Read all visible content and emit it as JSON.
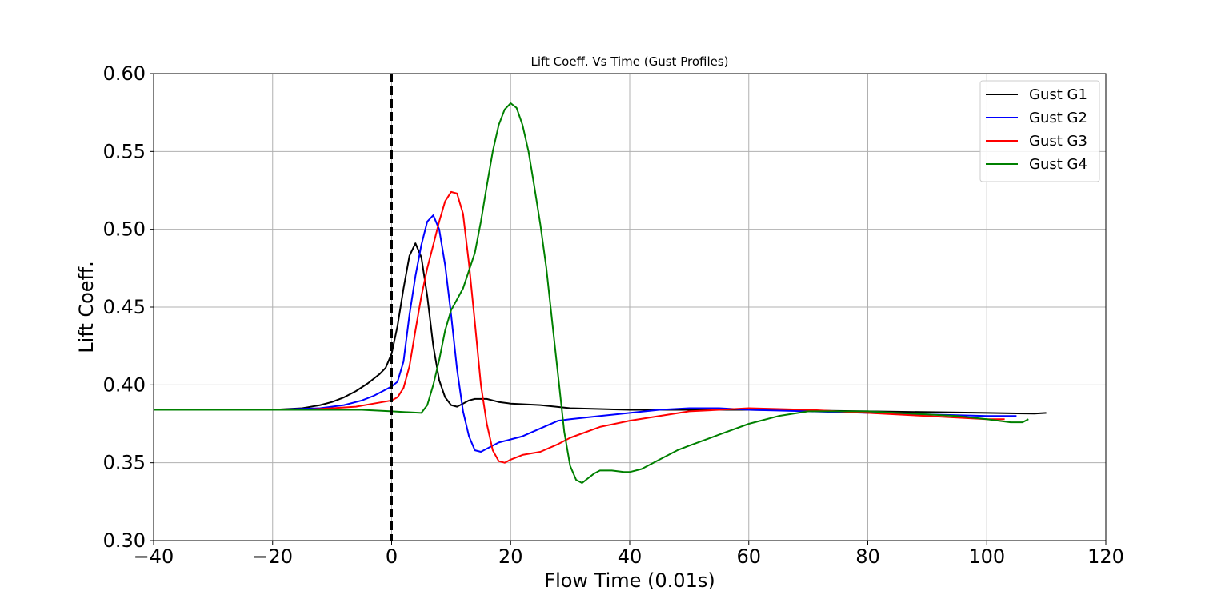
{
  "chart_data": {
    "type": "line",
    "title": "Lift Coeff. Vs Time (Gust Profiles)",
    "xlabel": "Flow Time (0.01s)",
    "ylabel": "Lift Coeff.",
    "xlim": [
      -40,
      120
    ],
    "ylim": [
      0.3,
      0.6
    ],
    "x_ticks": [
      -40,
      -20,
      0,
      20,
      40,
      60,
      80,
      100,
      120
    ],
    "x_tick_labels": [
      "−40",
      "−20",
      "0",
      "20",
      "40",
      "60",
      "80",
      "100",
      "120"
    ],
    "y_ticks": [
      0.3,
      0.35,
      0.4,
      0.45,
      0.5,
      0.55,
      0.6
    ],
    "y_tick_labels": [
      "0.30",
      "0.35",
      "0.40",
      "0.45",
      "0.50",
      "0.55",
      "0.60"
    ],
    "grid": true,
    "legend_position": "top-right",
    "reference_line": {
      "x": 0,
      "style": "dashed",
      "color": "#000000"
    },
    "series": [
      {
        "name": "Gust G1",
        "color": "#000000",
        "points": [
          [
            -40,
            0.384
          ],
          [
            -20,
            0.384
          ],
          [
            -15,
            0.385
          ],
          [
            -12,
            0.387
          ],
          [
            -10,
            0.389
          ],
          [
            -8,
            0.392
          ],
          [
            -6,
            0.396
          ],
          [
            -4,
            0.401
          ],
          [
            -2,
            0.407
          ],
          [
            -1,
            0.411
          ],
          [
            0,
            0.42
          ],
          [
            1,
            0.438
          ],
          [
            2,
            0.462
          ],
          [
            3,
            0.483
          ],
          [
            4,
            0.491
          ],
          [
            5,
            0.482
          ],
          [
            6,
            0.457
          ],
          [
            7,
            0.425
          ],
          [
            8,
            0.403
          ],
          [
            9,
            0.392
          ],
          [
            10,
            0.387
          ],
          [
            11,
            0.386
          ],
          [
            12,
            0.388
          ],
          [
            13,
            0.39
          ],
          [
            14,
            0.391
          ],
          [
            15,
            0.391
          ],
          [
            16,
            0.391
          ],
          [
            18,
            0.389
          ],
          [
            20,
            0.388
          ],
          [
            25,
            0.387
          ],
          [
            30,
            0.385
          ],
          [
            40,
            0.384
          ],
          [
            60,
            0.384
          ],
          [
            80,
            0.383
          ],
          [
            100,
            0.382
          ],
          [
            108,
            0.3815
          ],
          [
            110,
            0.382
          ]
        ]
      },
      {
        "name": "Gust G2",
        "color": "#0000ff",
        "points": [
          [
            -40,
            0.384
          ],
          [
            -20,
            0.384
          ],
          [
            -12,
            0.385
          ],
          [
            -8,
            0.387
          ],
          [
            -5,
            0.39
          ],
          [
            -3,
            0.393
          ],
          [
            -1,
            0.397
          ],
          [
            0,
            0.399
          ],
          [
            1,
            0.402
          ],
          [
            2,
            0.415
          ],
          [
            3,
            0.445
          ],
          [
            4,
            0.47
          ],
          [
            5,
            0.49
          ],
          [
            6,
            0.505
          ],
          [
            7,
            0.509
          ],
          [
            8,
            0.5
          ],
          [
            9,
            0.477
          ],
          [
            10,
            0.445
          ],
          [
            11,
            0.41
          ],
          [
            12,
            0.383
          ],
          [
            13,
            0.367
          ],
          [
            14,
            0.358
          ],
          [
            15,
            0.357
          ],
          [
            16,
            0.359
          ],
          [
            18,
            0.363
          ],
          [
            20,
            0.365
          ],
          [
            22,
            0.367
          ],
          [
            25,
            0.372
          ],
          [
            28,
            0.377
          ],
          [
            30,
            0.378
          ],
          [
            35,
            0.38
          ],
          [
            40,
            0.382
          ],
          [
            45,
            0.384
          ],
          [
            50,
            0.385
          ],
          [
            55,
            0.385
          ],
          [
            60,
            0.384
          ],
          [
            70,
            0.383
          ],
          [
            80,
            0.382
          ],
          [
            90,
            0.381
          ],
          [
            100,
            0.38
          ],
          [
            105,
            0.38
          ]
        ]
      },
      {
        "name": "Gust G3",
        "color": "#ff0000",
        "points": [
          [
            -40,
            0.384
          ],
          [
            -20,
            0.384
          ],
          [
            -15,
            0.384
          ],
          [
            -10,
            0.385
          ],
          [
            -6,
            0.386
          ],
          [
            -3,
            0.388
          ],
          [
            0,
            0.39
          ],
          [
            1,
            0.392
          ],
          [
            2,
            0.398
          ],
          [
            3,
            0.412
          ],
          [
            4,
            0.435
          ],
          [
            5,
            0.457
          ],
          [
            6,
            0.475
          ],
          [
            7,
            0.49
          ],
          [
            8,
            0.505
          ],
          [
            9,
            0.518
          ],
          [
            10,
            0.524
          ],
          [
            11,
            0.523
          ],
          [
            12,
            0.51
          ],
          [
            13,
            0.478
          ],
          [
            14,
            0.44
          ],
          [
            15,
            0.4
          ],
          [
            16,
            0.375
          ],
          [
            17,
            0.358
          ],
          [
            18,
            0.351
          ],
          [
            19,
            0.35
          ],
          [
            20,
            0.352
          ],
          [
            22,
            0.355
          ],
          [
            25,
            0.357
          ],
          [
            28,
            0.362
          ],
          [
            30,
            0.366
          ],
          [
            35,
            0.373
          ],
          [
            40,
            0.377
          ],
          [
            45,
            0.38
          ],
          [
            50,
            0.383
          ],
          [
            55,
            0.384
          ],
          [
            60,
            0.385
          ],
          [
            70,
            0.384
          ],
          [
            80,
            0.382
          ],
          [
            90,
            0.38
          ],
          [
            100,
            0.378
          ],
          [
            103,
            0.378
          ]
        ]
      },
      {
        "name": "Gust G4",
        "color": "#008000",
        "points": [
          [
            -40,
            0.384
          ],
          [
            -20,
            0.384
          ],
          [
            -10,
            0.384
          ],
          [
            -5,
            0.384
          ],
          [
            0,
            0.383
          ],
          [
            5,
            0.382
          ],
          [
            6,
            0.387
          ],
          [
            7,
            0.4
          ],
          [
            8,
            0.416
          ],
          [
            9,
            0.435
          ],
          [
            10,
            0.448
          ],
          [
            12,
            0.462
          ],
          [
            14,
            0.485
          ],
          [
            15,
            0.505
          ],
          [
            16,
            0.528
          ],
          [
            17,
            0.55
          ],
          [
            18,
            0.567
          ],
          [
            19,
            0.577
          ],
          [
            20,
            0.581
          ],
          [
            21,
            0.578
          ],
          [
            22,
            0.567
          ],
          [
            23,
            0.55
          ],
          [
            24,
            0.527
          ],
          [
            25,
            0.503
          ],
          [
            26,
            0.475
          ],
          [
            27,
            0.44
          ],
          [
            28,
            0.405
          ],
          [
            29,
            0.37
          ],
          [
            30,
            0.348
          ],
          [
            31,
            0.339
          ],
          [
            32,
            0.337
          ],
          [
            33,
            0.34
          ],
          [
            34,
            0.343
          ],
          [
            35,
            0.345
          ],
          [
            37,
            0.345
          ],
          [
            39,
            0.344
          ],
          [
            40,
            0.344
          ],
          [
            42,
            0.346
          ],
          [
            45,
            0.352
          ],
          [
            48,
            0.358
          ],
          [
            50,
            0.361
          ],
          [
            55,
            0.368
          ],
          [
            60,
            0.375
          ],
          [
            65,
            0.38
          ],
          [
            70,
            0.383
          ],
          [
            75,
            0.383
          ],
          [
            80,
            0.383
          ],
          [
            85,
            0.382
          ],
          [
            90,
            0.381
          ],
          [
            95,
            0.38
          ],
          [
            100,
            0.378
          ],
          [
            104,
            0.376
          ],
          [
            106,
            0.376
          ],
          [
            107,
            0.378
          ]
        ]
      }
    ]
  }
}
